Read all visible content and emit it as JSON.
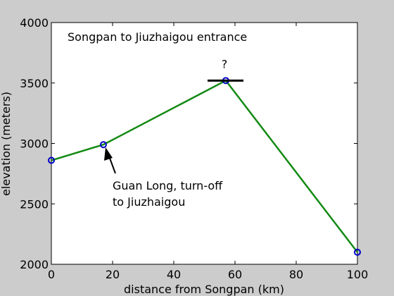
{
  "chart_data": {
    "type": "line",
    "title": "Songpan to Jiuzhaigou entrance",
    "xlabel": "distance from Songpan (km)",
    "ylabel": "elevation (meters)",
    "xlim": [
      0,
      100
    ],
    "ylim": [
      2000,
      4000
    ],
    "xticks": [
      "0",
      "20",
      "40",
      "60",
      "80",
      "100"
    ],
    "yticks": [
      "2000",
      "2500",
      "3000",
      "3500",
      "4000"
    ],
    "x": [
      0,
      17,
      57,
      100
    ],
    "y": [
      2860,
      2990,
      3520,
      2100
    ],
    "grid": false,
    "colors": {
      "line": "#138a13",
      "marker": "#0000cc",
      "arrow": "#000000",
      "background": "#cccccc",
      "plot_area": "#ffffff"
    },
    "annotations": {
      "turnoff_line1": "Guan Long, turn-off",
      "turnoff_line2": "to Jiuzhaigou",
      "peak_mark": "?"
    }
  }
}
